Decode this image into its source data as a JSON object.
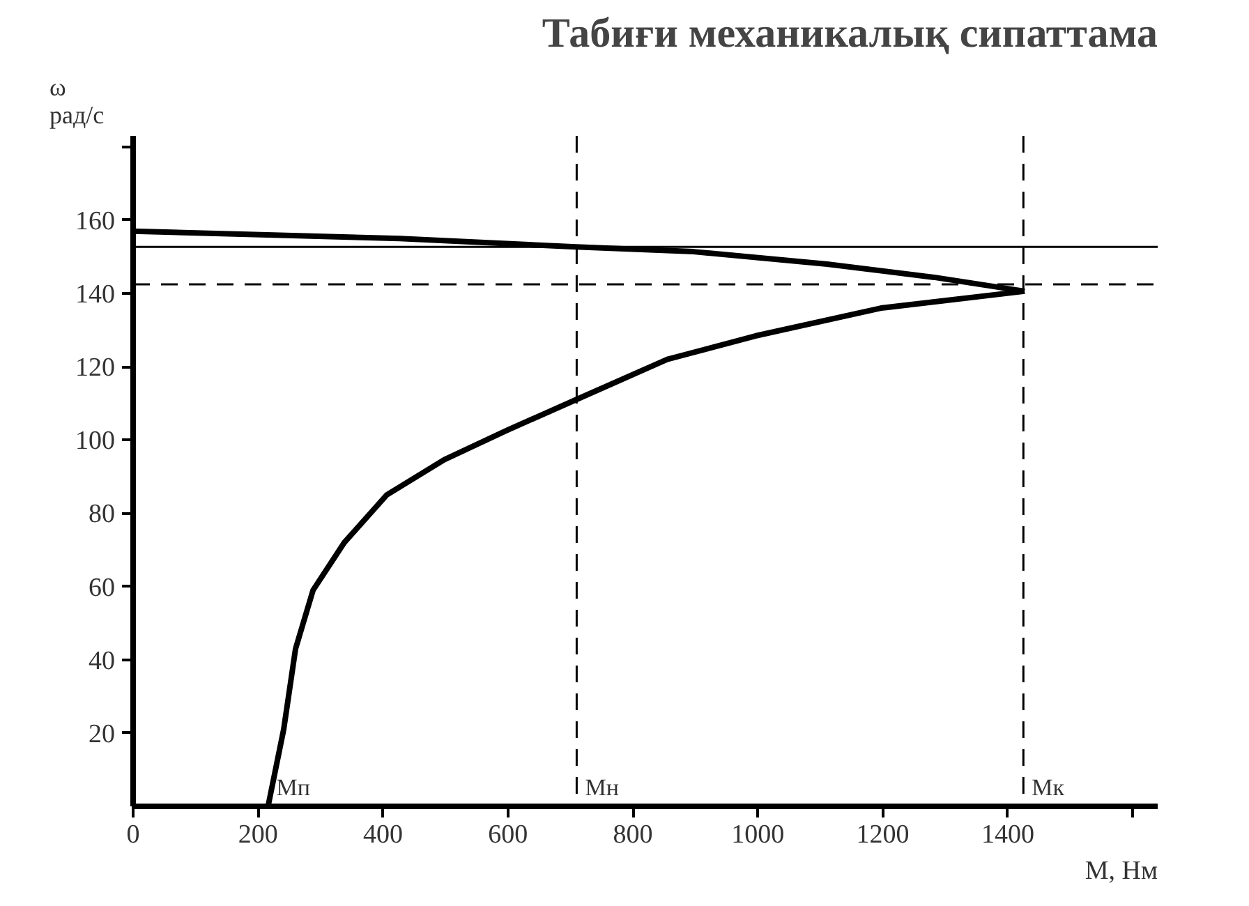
{
  "chart_data": {
    "type": "line",
    "title": "Табиғи механикалық сипаттама",
    "xlabel": "М, Нм",
    "ylabel": "ω рад/с",
    "series": [
      {
        "color": "#000000",
        "x": [
          0,
          214,
          427,
          709,
          897,
          1111,
          1282,
          1427
        ],
        "values": [
          157,
          156,
          155,
          152.7,
          151.4,
          148,
          144.4,
          140.6
        ]
      },
      {
        "color": "#000000",
        "x": [
          216,
          241,
          260,
          288,
          338,
          406,
          498,
          598,
          709,
          855,
          996,
          1197,
          1427
        ],
        "values": [
          0,
          21,
          43,
          59,
          72,
          85,
          94.6,
          102.6,
          111,
          122,
          128.4,
          136,
          140.6
        ]
      }
    ],
    "ref_lines": [
      {
        "axis": "x",
        "value": 710,
        "line_style": "dashed",
        "color": "#000000"
      },
      {
        "axis": "x",
        "value": 1425,
        "line_style": "dashed",
        "color": "#000000"
      },
      {
        "axis": "y",
        "value": 142.5,
        "line_style": "dashed",
        "color": "#000000"
      },
      {
        "axis": "y",
        "value": 152.7,
        "line_style": "solid",
        "color": "#000000"
      }
    ],
    "annotations": [
      {
        "text": "Мп",
        "x": 216,
        "y": 0
      },
      {
        "text": "Мн",
        "x": 710,
        "y": 0
      },
      {
        "text": "Мк",
        "x": 1425,
        "y": 0
      }
    ],
    "xlim": [
      0,
      1640
    ],
    "ylim": [
      0,
      183
    ],
    "xticks": [
      0,
      200,
      400,
      600,
      800,
      1000,
      1200,
      1400,
      {
        "value": 1600,
        "label": null
      }
    ],
    "yticks": [
      20,
      40,
      60,
      80,
      100,
      120,
      140,
      160,
      {
        "value": 180,
        "label": null
      }
    ],
    "grid": false,
    "marker": "none",
    "line_style": "solid"
  }
}
